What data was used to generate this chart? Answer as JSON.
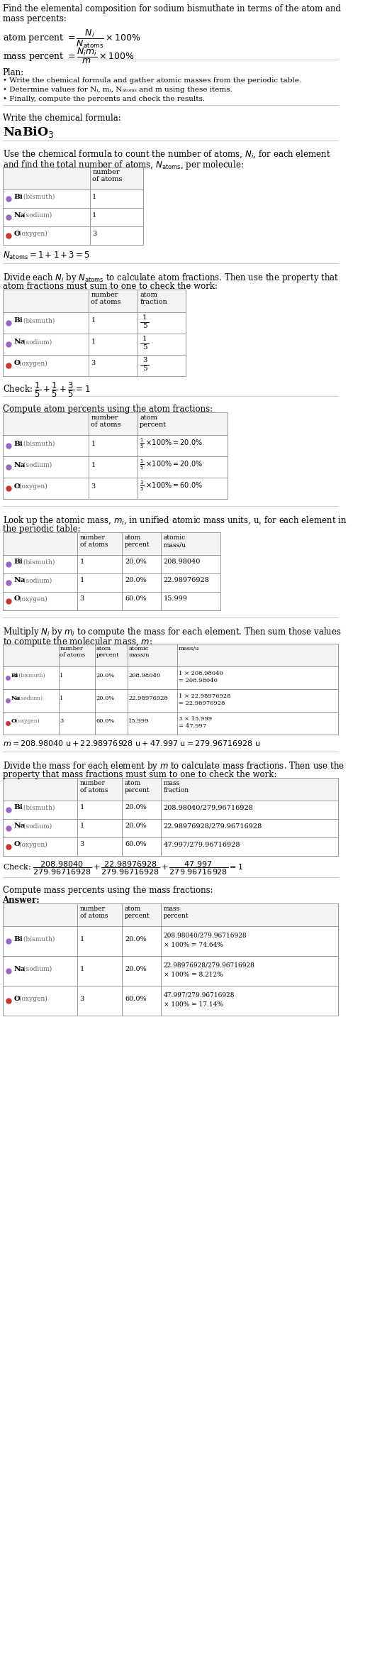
{
  "bg_color": "#ffffff",
  "fs_main": 8.5,
  "fs_small": 7.5,
  "element_colors": [
    "#9966CC",
    "#9966BB",
    "#CC3333"
  ],
  "elements": [
    "Bi (bismuth)",
    "Na (sodium)",
    "O (oxygen)"
  ],
  "num_atoms": [
    "1",
    "1",
    "3"
  ],
  "atom_fractions": [
    "1/5",
    "1/5",
    "3/5"
  ],
  "atom_percents": [
    "20.0%",
    "20.0%",
    "60.0%"
  ],
  "atomic_masses": [
    "208.98040",
    "22.98976928",
    "15.999"
  ],
  "mass_values": [
    "208.98040",
    "22.98976928",
    "47.997"
  ],
  "mass_values_full": [
    "1 × 208.98040 = 208.98040",
    "1 × 22.98976928 = 22.98976928",
    "3 × 15.999 = 47.997"
  ],
  "mass_fractions": [
    "208.98040/279.96716928",
    "22.98976928/279.96716928",
    "47.997/279.96716928"
  ],
  "mass_percents_line1": [
    "208.98040/279.96716928",
    "22.98976928/279.96716928",
    "47.997/279.96716928"
  ],
  "mass_percents_line2": [
    "× 100% = 74.64%",
    "× 100% = 8.212%",
    "× 100% = 17.14%"
  ]
}
